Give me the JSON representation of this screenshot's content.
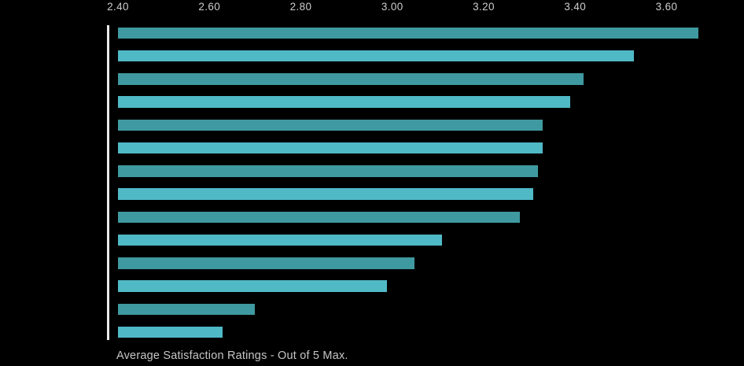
{
  "chart_data": {
    "type": "bar",
    "orientation": "horizontal",
    "title": "",
    "caption": "Average Satisfaction Ratings - Out of 5 Max.",
    "values": [
      3.67,
      3.53,
      3.42,
      3.39,
      3.33,
      3.33,
      3.32,
      3.31,
      3.28,
      3.11,
      3.05,
      2.99,
      2.7,
      2.63
    ],
    "x_axis": {
      "position": "top",
      "tick_labels": [
        "2.40",
        "2.60",
        "2.80",
        "3.00",
        "3.20",
        "3.40",
        "3.60"
      ],
      "tick_values": [
        2.4,
        2.6,
        2.8,
        3.0,
        3.2,
        3.4,
        3.6
      ],
      "min": 2.4,
      "max": 3.77
    },
    "grid": false,
    "legend": false,
    "colors": {
      "bar_alternate_dark": "#3f99a0",
      "bar_alternate_light": "#50b9c6",
      "axis_line": "#ebebeb",
      "tick_label": "#cdcdcd",
      "caption": "#c6c6c6",
      "background": "#000000"
    }
  }
}
